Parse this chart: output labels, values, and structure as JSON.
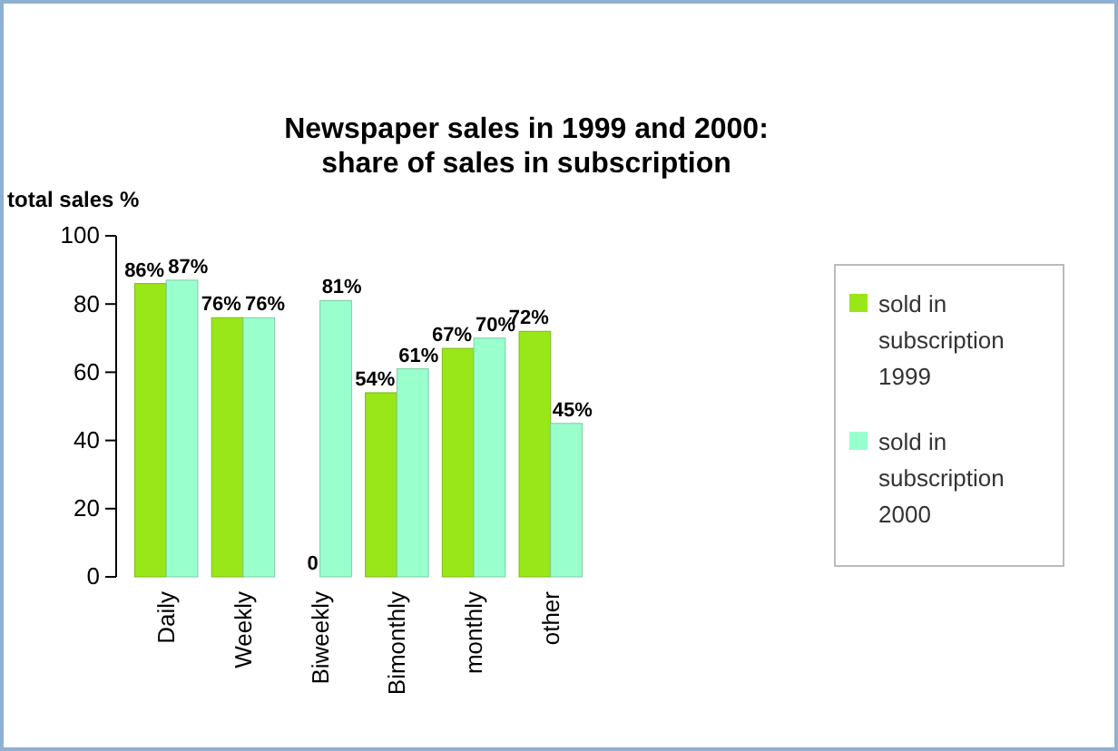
{
  "chart_data": {
    "type": "bar",
    "title": "Newspaper sales in 1999 and 2000:\nshare of sales in subscription",
    "ylabel": "total sales %",
    "categories": [
      "Daily",
      "Weekly",
      "Biweekly",
      "Bimonthly",
      "monthly",
      "other"
    ],
    "series": [
      {
        "name": "sold in subscription 1999",
        "color": "#99e619",
        "values": [
          86,
          76,
          0,
          54,
          67,
          72
        ],
        "value_labels": [
          "86%",
          "76%",
          "0",
          "54%",
          "67%",
          "72%"
        ]
      },
      {
        "name": "sold in subscription 2000",
        "color": "#99ffcc",
        "values": [
          87,
          76,
          81,
          61,
          70,
          45
        ],
        "value_labels": [
          "87%",
          "76%",
          "81%",
          "61%",
          "70%",
          "45%"
        ]
      }
    ],
    "ylim": [
      0,
      100
    ],
    "yticks": [
      0,
      20,
      40,
      60,
      80,
      100
    ],
    "legend": "right"
  }
}
